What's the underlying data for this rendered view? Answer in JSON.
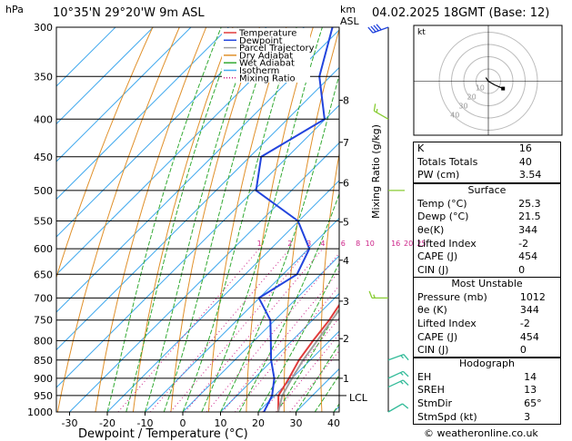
{
  "header": {
    "pressure_unit": "hPa",
    "location": "10°35'N 29°20'W 9m ASL",
    "km_label": "km",
    "asl_label": "ASL",
    "datetime": "04.02.2025 18GMT (Base: 12)"
  },
  "colors": {
    "temperature": "#e03c3c",
    "dewpoint": "#2244dd",
    "parcel": "#a0a0a0",
    "dry_adiabat": "#e0902a",
    "wet_adiabat": "#33aa33",
    "isotherm": "#44aaee",
    "mixing_ratio": "#cc2288",
    "wind_low": "#33bb99",
    "wind_mid": "#88cc33",
    "wind_high": "#2244dd"
  },
  "legend": [
    {
      "label": "Temperature",
      "key": "temperature"
    },
    {
      "label": "Dewpoint",
      "key": "dewpoint"
    },
    {
      "label": "Parcel Trajectory",
      "key": "parcel"
    },
    {
      "label": "Dry Adiabat",
      "key": "dry_adiabat"
    },
    {
      "label": "Wet Adiabat",
      "key": "wet_adiabat"
    },
    {
      "label": "Isotherm",
      "key": "isotherm"
    },
    {
      "label": "Mixing Ratio",
      "key": "mixing_ratio",
      "dotted": true
    }
  ],
  "chart_data": {
    "type": "line",
    "title": "10°35'N 29°20'W 9m ASL",
    "xlabel": "Dewpoint / Temperature (°C)",
    "ylabel": "Mixing Ratio (g/kg)",
    "xlim": [
      -35,
      40
    ],
    "ylim": [
      1000,
      300
    ],
    "y_scale": "log",
    "grid": true,
    "legend_position": "top-left",
    "pressure_levels": [
      300,
      350,
      400,
      450,
      500,
      550,
      600,
      650,
      700,
      750,
      800,
      850,
      900,
      950,
      1000
    ],
    "x_ticks": [
      -30,
      -20,
      -10,
      0,
      10,
      20,
      30,
      40
    ],
    "km_ticks": [
      {
        "label": "1",
        "p": 900
      },
      {
        "label": "2",
        "p": 795
      },
      {
        "label": "3",
        "p": 707
      },
      {
        "label": "4",
        "p": 622
      },
      {
        "label": "5",
        "p": 552
      },
      {
        "label": "6",
        "p": 488
      },
      {
        "label": "7",
        "p": 430
      },
      {
        "label": "8",
        "p": 377
      }
    ],
    "lcl": {
      "label": "LCL",
      "p": 950
    },
    "mixing_ratio_labels": [
      "1",
      "2",
      "3",
      "4",
      "6",
      "8",
      "10",
      "16",
      "20",
      "25"
    ],
    "series": [
      {
        "name": "Temperature",
        "p": [
          1000,
          950,
          900,
          850,
          800,
          750,
          700,
          650,
          600,
          550,
          500,
          450,
          400,
          350,
          300
        ],
        "values": [
          25.3,
          21.0,
          19.2,
          17.0,
          15.6,
          14.4,
          12.4,
          7.6,
          3.4,
          1.7,
          -1.3,
          -6.0,
          -12.3,
          -18.5,
          -26.8
        ]
      },
      {
        "name": "Dewpoint",
        "p": [
          1000,
          950,
          900,
          850,
          800,
          750,
          700,
          650,
          600,
          550,
          500,
          450,
          400,
          350,
          300
        ],
        "values": [
          21.5,
          19.3,
          15.3,
          9.6,
          4.4,
          -1.2,
          -10.1,
          -6.3,
          -9.8,
          -20.2,
          -39.4,
          -47.0,
          -40.2,
          -52.9,
          -62.5
        ]
      },
      {
        "name": "Parcel Trajectory",
        "p": [
          1000,
          950,
          900,
          850,
          800,
          750,
          700,
          650,
          600,
          550,
          500,
          450,
          400,
          350,
          300
        ],
        "values": [
          25.3,
          22.0,
          20.0,
          18.1,
          16.7,
          15.1,
          13.6,
          11.1,
          7.3,
          3.3,
          -1.3,
          -6.0,
          -12.3,
          -18.5,
          -26.8
        ]
      }
    ]
  },
  "wind_barbs": [
    {
      "p": 300,
      "dir": 250,
      "kt": 40,
      "color": "wind_high"
    },
    {
      "p": 400,
      "dir": 300,
      "kt": 15,
      "color": "wind_mid"
    },
    {
      "p": 500,
      "dir": 90,
      "kt": 3,
      "color": "wind_mid"
    },
    {
      "p": 700,
      "dir": 270,
      "kt": 15,
      "color": "wind_mid"
    },
    {
      "p": 850,
      "dir": 70,
      "kt": 15,
      "color": "wind_low"
    },
    {
      "p": 900,
      "dir": 65,
      "kt": 15,
      "color": "wind_low"
    },
    {
      "p": 925,
      "dir": 65,
      "kt": 15,
      "color": "wind_low"
    },
    {
      "p": 1000,
      "dir": 60,
      "kt": 10,
      "color": "wind_low"
    }
  ],
  "hodograph": {
    "label": "kt",
    "ring_labels": [
      "10",
      "20",
      "30",
      "40"
    ],
    "ring_max": 40,
    "trace": [
      [
        -2,
        3
      ],
      [
        0,
        0
      ],
      [
        5,
        -3
      ],
      [
        12,
        -6
      ]
    ]
  },
  "indices_top": [
    {
      "key": "K",
      "value": "16"
    },
    {
      "key": "Totals Totals",
      "value": "40"
    },
    {
      "key": "PW (cm)",
      "value": "3.54"
    }
  ],
  "surface": {
    "title": "Surface",
    "rows": [
      {
        "key": "Temp (°C)",
        "value": "25.3"
      },
      {
        "key": "Dewp (°C)",
        "value": "21.5"
      },
      {
        "key": "θe(K)",
        "value": "344"
      },
      {
        "key": "Lifted Index",
        "value": "-2"
      },
      {
        "key": "CAPE (J)",
        "value": "454"
      },
      {
        "key": "CIN (J)",
        "value": "0"
      }
    ]
  },
  "unstable": {
    "title": "Most Unstable",
    "rows": [
      {
        "key": "Pressure (mb)",
        "value": "1012"
      },
      {
        "key": "θe (K)",
        "value": "344"
      },
      {
        "key": "Lifted Index",
        "value": "-2"
      },
      {
        "key": "CAPE (J)",
        "value": "454"
      },
      {
        "key": "CIN (J)",
        "value": "0"
      }
    ]
  },
  "hodo_table": {
    "title": "Hodograph",
    "rows": [
      {
        "key": "EH",
        "value": "14"
      },
      {
        "key": "SREH",
        "value": "13"
      },
      {
        "key": "StmDir",
        "value": "65°"
      },
      {
        "key": "StmSpd (kt)",
        "value": "3"
      }
    ]
  },
  "footer": {
    "copyright": "© weatheronline.co.uk"
  }
}
